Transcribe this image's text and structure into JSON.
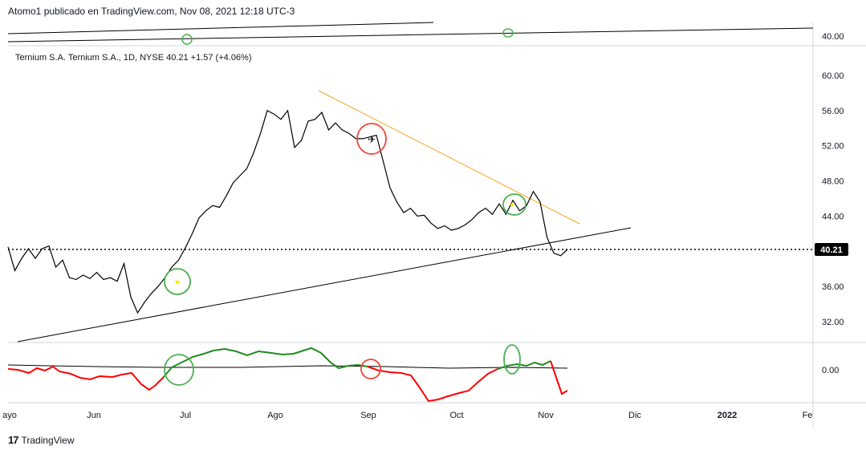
{
  "header": {
    "published": "Atomo1 publicado en TradingView.com, Nov 08, 2021 12:18 UTC-3"
  },
  "legend": {
    "text": "Ternium S.A. Ternium S.A., 1D, NYSE  40.21  +1.57 (+4.06%)"
  },
  "footer": {
    "logo": "17",
    "brand": "TradingView"
  },
  "colors": {
    "price_line": "#000000",
    "resistance_line": "#f5a623",
    "oscillator_up": "#1e8c1e",
    "oscillator_down": "#ff0000",
    "circle_green": "#4caf50",
    "circle_red": "#f44336",
    "last_price_bg": "#000000"
  },
  "chart_data": [
    {
      "type": "line",
      "series": [
        {
          "values": [
            40.5,
            37.8,
            39.2,
            40.3,
            39.2,
            40.3,
            40.6,
            38.2,
            39.0,
            37.0,
            36.8,
            37.3,
            36.9,
            37.6,
            36.8,
            37.0,
            36.6,
            38.6,
            34.8,
            33.0,
            34.2,
            35.2,
            36.0,
            37.0,
            38.2,
            39.0,
            40.4,
            42.0,
            43.8,
            44.6,
            45.2,
            45.0,
            46.3,
            47.8,
            48.6,
            49.4,
            51.2,
            53.4,
            56.0,
            55.6,
            55.0,
            56.0,
            51.8,
            52.6,
            54.8,
            55.0,
            55.8,
            53.8,
            54.6,
            53.8,
            53.4,
            52.8,
            52.8,
            53.0,
            53.2,
            50.2,
            47.2,
            45.6,
            44.4,
            44.9,
            44.0,
            44.1,
            43.2,
            42.6,
            42.9,
            42.4,
            42.6,
            43.0,
            43.6,
            44.4,
            44.9,
            44.2,
            45.4,
            44.2,
            45.8,
            44.6,
            45.2,
            46.8,
            45.6,
            41.6,
            39.8,
            39.5,
            40.21
          ],
          "last_value": 40.21
        }
      ],
      "x_tick_labels": [
        "ayo",
        "Jun",
        "Jul",
        "Ago",
        "Sep",
        "Oct",
        "Nov",
        "Dic",
        "2022",
        "Fe"
      ],
      "y_tick_labels": [
        "60.00",
        "56.00",
        "52.00",
        "48.00",
        "44.00",
        "40.00",
        "36.00",
        "32.00"
      ],
      "ylim": [
        29.5,
        62.5
      ],
      "grid": false
    },
    {
      "type": "line",
      "y_tick_labels": [
        "0.00"
      ]
    }
  ],
  "top_strip": {
    "y_tick_label": "40.00"
  }
}
